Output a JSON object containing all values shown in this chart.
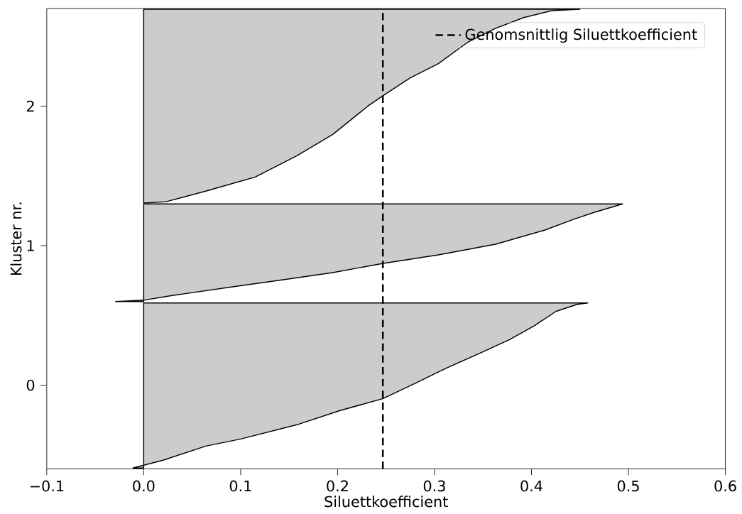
{
  "chart_data": {
    "type": "area",
    "orientation": "horizontal",
    "xlabel": "Siluettkoefficient",
    "ylabel": "Kluster nr.",
    "xlim": [
      -0.1,
      0.6
    ],
    "ylim": [
      -0.6,
      2.7
    ],
    "xticks": [
      {
        "value": -0.1,
        "label": "−0.1"
      },
      {
        "value": 0,
        "label": "0.0"
      },
      0.1,
      0.2,
      0.3,
      0.4,
      0.5,
      0.6
    ],
    "yticks": [
      0,
      1,
      2
    ],
    "series": [
      {
        "color": "#cccccc",
        "x": [
          -0.594,
          -0.574,
          -0.538,
          -0.437,
          -0.386,
          -0.284,
          -0.183,
          -0.096,
          0.02,
          0.122,
          0.223,
          0.325,
          0.426,
          0.528,
          0.579,
          0.589
        ],
        "values": [
          -0.011,
          0.0,
          0.02,
          0.064,
          0.1,
          0.158,
          0.202,
          0.247,
          0.282,
          0.312,
          0.345,
          0.377,
          0.403,
          0.425,
          0.447,
          0.458
        ]
      },
      {
        "color": "#cccccc",
        "x": [
          0.599,
          0.609,
          0.64,
          0.706,
          0.756,
          0.807,
          0.873,
          0.934,
          1.01,
          1.112,
          1.188,
          1.239,
          1.299
        ],
        "values": [
          -0.029,
          0.0,
          0.027,
          0.093,
          0.144,
          0.195,
          0.247,
          0.304,
          0.363,
          0.414,
          0.443,
          0.465,
          0.494
        ]
      },
      {
        "color": "#cccccc",
        "x": [
          1.305,
          1.315,
          1.391,
          1.492,
          1.645,
          1.797,
          1.999,
          2.076,
          2.203,
          2.305,
          2.457,
          2.558,
          2.635,
          2.685,
          2.695
        ],
        "values": [
          0.0,
          0.023,
          0.064,
          0.115,
          0.158,
          0.195,
          0.231,
          0.247,
          0.275,
          0.304,
          0.334,
          0.363,
          0.392,
          0.421,
          0.45
        ]
      }
    ],
    "ref_lines": [
      {
        "axis": "x",
        "value": 0.2467,
        "label": "Genomsnittlig Siluettkoefficient",
        "color": "#000000",
        "line_style": "dashed"
      }
    ],
    "legend": "top right",
    "grid": false
  }
}
